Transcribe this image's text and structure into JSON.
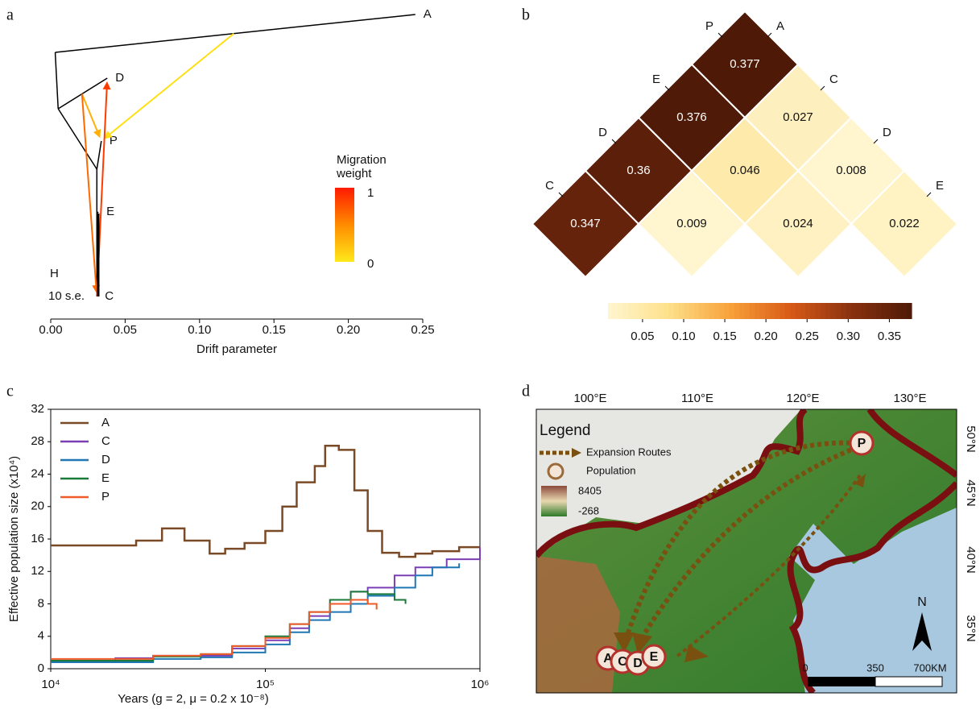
{
  "chart_data": [
    {
      "type": "tree",
      "panel_label": "a",
      "xlabel": "Drift parameter",
      "xlim": [
        0,
        0.25
      ],
      "xticks": [
        {
          "value": 0,
          "label": "0.00"
        },
        0.05,
        {
          "value": 0.1,
          "label": "0.10"
        },
        0.15,
        {
          "value": 0.2,
          "label": "0.20"
        },
        0.25
      ],
      "nodes": [
        {
          "name": null,
          "x": 0.003,
          "parent": null
        },
        {
          "name": "A",
          "x": 0.245,
          "parent": 0
        },
        {
          "name": null,
          "x": 0.005,
          "parent": 0
        },
        {
          "name": "D",
          "x": 0.038,
          "parent": 2
        },
        {
          "name": null,
          "x": 0.031,
          "parent": 2
        },
        {
          "name": "P",
          "x": 0.034,
          "parent": 4
        },
        {
          "name": null,
          "x": 0.031,
          "parent": 4
        },
        {
          "name": "E",
          "x": 0.032,
          "parent": 6
        },
        {
          "name": "C",
          "x": 0.031,
          "parent": 6
        }
      ],
      "migrations": [
        {
          "from": 1,
          "at": 0.123,
          "to": 5,
          "weight": 0.05
        },
        {
          "from": 3,
          "at": 0.021,
          "to": 5,
          "weight": 0.3
        },
        {
          "from": 3,
          "at": 0.021,
          "to": 8,
          "weight": 0.65
        },
        {
          "from": 8,
          "at": 0.031,
          "to": 3,
          "weight": 0.85
        }
      ],
      "scale_marker": "H",
      "scale_label": "10 s.e.",
      "legend_title": [
        "Migration",
        "weight"
      ],
      "legend_ticks": [
        1,
        0
      ],
      "colormap": [
        "#ffe81a",
        "#ff8c00",
        "#ff1a00"
      ]
    },
    {
      "type": "heatmap",
      "panel_label": "b",
      "left_labels": [
        "P",
        "E",
        "D",
        "C"
      ],
      "right_labels": [
        "A",
        "C",
        "D",
        "E"
      ],
      "values": [
        [
          0.377,
          0.027,
          0.008,
          0.022
        ],
        [
          0.376,
          0.046,
          0.024,
          null
        ],
        [
          0.36,
          0.009,
          null,
          null
        ],
        [
          0.347,
          null,
          null,
          null
        ]
      ],
      "clim": [
        0.008,
        0.377
      ],
      "cticks": [
        0.05,
        {
          "value": 0.1,
          "label": "0.10"
        },
        0.15,
        {
          "value": 0.2,
          "label": "0.20"
        },
        0.25,
        {
          "value": 0.3,
          "label": "0.30"
        },
        0.35
      ],
      "colormap": [
        "#fff6d0",
        "#fde08a",
        "#f8a23a",
        "#d85a16",
        "#8a3110",
        "#4e1a07"
      ]
    },
    {
      "type": "line",
      "panel_label": "c",
      "step": true,
      "log_x": true,
      "xlabel": "Years (g = 2, μ = 0.2 x 10⁻⁸)",
      "ylabel": "Effective population size (x10⁴)",
      "xlim": [
        10000,
        1000000
      ],
      "xticks": [
        {
          "value": 10000,
          "label": "10⁴"
        },
        {
          "value": 100000,
          "label": "10⁵"
        },
        {
          "value": 1000000,
          "label": "10⁶"
        }
      ],
      "ylim": [
        0,
        32
      ],
      "yticks": [
        0,
        4,
        8,
        12,
        16,
        20,
        24,
        28,
        32
      ],
      "series": [
        {
          "name": "A",
          "color": "#7a4a26",
          "x": [
            10000,
            25000,
            33000,
            42000,
            55000,
            65000,
            80000,
            100000,
            120000,
            140000,
            170000,
            190000,
            220000,
            260000,
            300000,
            350000,
            420000,
            500000,
            600000,
            800000,
            1000000
          ],
          "values": [
            15.2,
            15.8,
            17.3,
            15.8,
            14.2,
            14.8,
            15.5,
            17,
            20,
            23,
            25,
            27.5,
            27,
            22,
            17,
            14.3,
            13.8,
            14.2,
            14.5,
            15,
            15
          ]
        },
        {
          "name": "C",
          "color": "#7b3fb5",
          "x": [
            10000,
            20000,
            30000,
            50000,
            70000,
            100000,
            130000,
            160000,
            200000,
            250000,
            300000,
            400000,
            500000,
            700000,
            1000000
          ],
          "values": [
            1,
            1.3,
            1.6,
            1.6,
            2.5,
            3.5,
            5,
            6.5,
            8,
            9.5,
            10,
            11.5,
            12.5,
            13.5,
            15
          ]
        },
        {
          "name": "D",
          "color": "#1f77b4",
          "x": [
            10000,
            30000,
            50000,
            70000,
            100000,
            130000,
            160000,
            200000,
            250000,
            300000,
            400000,
            500000,
            600000,
            800000
          ],
          "values": [
            0.8,
            1.2,
            1.4,
            2,
            3,
            4.5,
            6,
            7,
            8,
            9,
            10,
            11.5,
            12.5,
            13
          ]
        },
        {
          "name": "E",
          "color": "#1a7a3a",
          "x": [
            10000,
            30000,
            50000,
            70000,
            100000,
            130000,
            160000,
            200000,
            250000,
            300000,
            400000,
            450000
          ],
          "values": [
            1,
            1.5,
            1.8,
            2.8,
            4,
            5.5,
            7,
            8.5,
            9.5,
            9.2,
            8.5,
            8
          ]
        },
        {
          "name": "P",
          "color": "#f05a28",
          "x": [
            10000,
            30000,
            50000,
            70000,
            100000,
            130000,
            160000,
            200000,
            250000,
            300000,
            330000
          ],
          "values": [
            1.2,
            1.6,
            1.8,
            2.8,
            3.8,
            5.5,
            7,
            8,
            8.5,
            8,
            7.3
          ]
        }
      ]
    }
  ],
  "map": {
    "panel_label": "d",
    "legend_title": "Legend",
    "route_label": "Expansion Routes",
    "population_label": "Population",
    "elevation_max": 8405,
    "elevation_min": -268,
    "lon_labels": [
      "100°E",
      "110°E",
      "120°E",
      "130°E"
    ],
    "lat_labels": [
      "50°N",
      "45°N",
      "40°N",
      "35°N"
    ],
    "scale_labels": [
      0,
      350,
      "700KM"
    ],
    "north": "N",
    "populations": [
      "A",
      "C",
      "D",
      "E",
      "P"
    ]
  }
}
